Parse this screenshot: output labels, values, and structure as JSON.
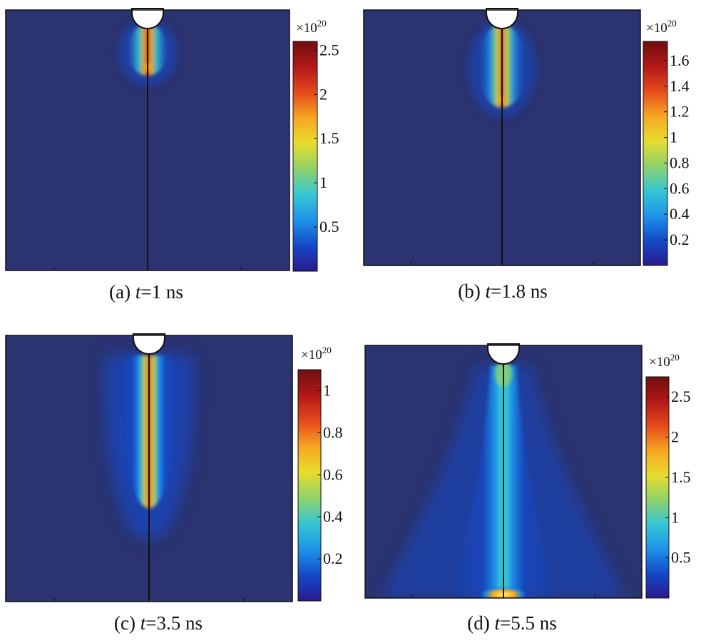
{
  "colormap": [
    "#2a1a8e",
    "#1449c8",
    "#1e93e8",
    "#35c6d3",
    "#8fd26b",
    "#e9dc2d",
    "#f6a623",
    "#e54a1c",
    "#b21818",
    "#6e0f0f"
  ],
  "background_color": "#2b3370",
  "chart_data": [
    {
      "type": "heatmap",
      "caption": {
        "label": "(a)",
        "var": "t",
        "eq": "=",
        "value": "1",
        "unit": "ns"
      },
      "colorbar": {
        "exponent_base": "×10",
        "exponent_power": "20",
        "min": 0,
        "max": 2.6,
        "ticks": [
          0.5,
          1,
          1.5,
          2,
          2.5
        ],
        "tick_labels": [
          "0.5",
          "1",
          "1.5",
          "2",
          "2.5"
        ]
      },
      "plume": {
        "tip_fraction": 0.23,
        "peak": 2.6,
        "width": "narrow"
      },
      "substrate_hot_spot": false
    },
    {
      "type": "heatmap",
      "caption": {
        "label": "(b)",
        "var": "t",
        "eq": "=",
        "value": "1.8",
        "unit": "ns"
      },
      "colorbar": {
        "exponent_base": "×10",
        "exponent_power": "20",
        "min": 0,
        "max": 1.75,
        "ticks": [
          0.2,
          0.4,
          0.6,
          0.8,
          1,
          1.2,
          1.4,
          1.6
        ],
        "tick_labels": [
          "0.2",
          "0.4",
          "0.6",
          "0.8",
          "1",
          "1.2",
          "1.4",
          "1.6"
        ]
      },
      "plume": {
        "tip_fraction": 0.36,
        "peak": 1.75,
        "width": "narrow"
      },
      "substrate_hot_spot": false
    },
    {
      "type": "heatmap",
      "caption": {
        "label": "(c)",
        "var": "t",
        "eq": "=",
        "value": "3.5",
        "unit": "ns"
      },
      "colorbar": {
        "exponent_base": "×10",
        "exponent_power": "20",
        "min": 0,
        "max": 1.1,
        "ticks": [
          0.2,
          0.4,
          0.6,
          0.8,
          1
        ],
        "tick_labels": [
          "0.2",
          "0.4",
          "0.6",
          "0.8",
          "1"
        ]
      },
      "plume": {
        "tip_fraction": 0.63,
        "peak": 1.1,
        "width": "medium"
      },
      "substrate_hot_spot": false
    },
    {
      "type": "heatmap",
      "caption": {
        "label": "(d)",
        "var": "t",
        "eq": "=",
        "value": "5.5",
        "unit": "ns"
      },
      "colorbar": {
        "exponent_base": "×10",
        "exponent_power": "20",
        "min": 0,
        "max": 2.75,
        "ticks": [
          0.5,
          1,
          1.5,
          2,
          2.5
        ],
        "tick_labels": [
          "0.5",
          "1",
          "1.5",
          "2",
          "2.5"
        ]
      },
      "plume": {
        "tip_fraction": 1.0,
        "peak": 1.0,
        "width": "wide"
      },
      "substrate_hot_spot": true
    }
  ]
}
